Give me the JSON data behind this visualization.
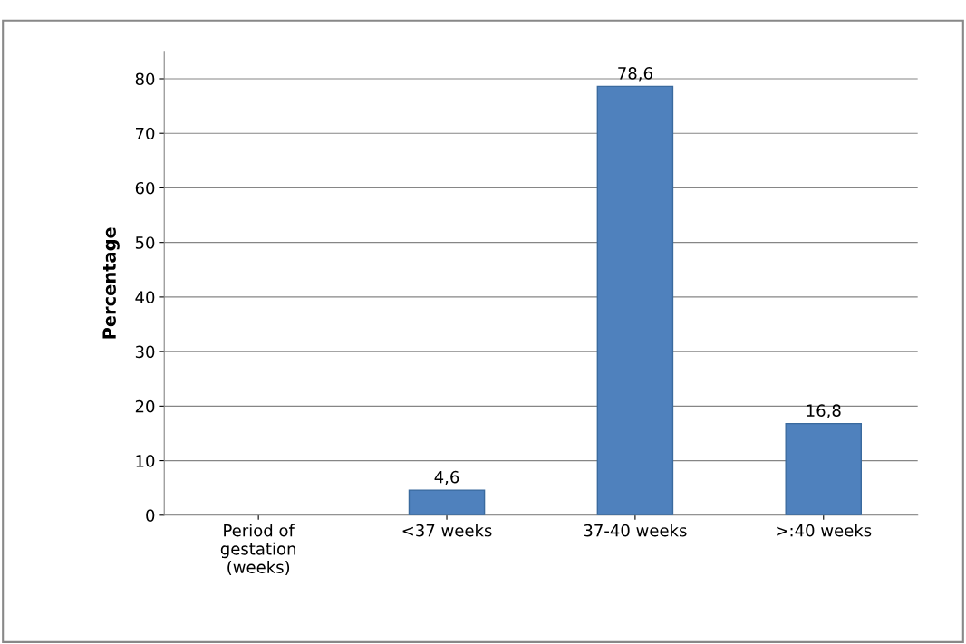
{
  "chart_data": {
    "type": "bar",
    "ylabel": "Percentage",
    "categories": [
      "Period of\ngestation\n(weeks)",
      "<37 weeks",
      "37-40 weeks",
      ">:40 weeks"
    ],
    "values": [
      null,
      4.6,
      78.6,
      16.8
    ],
    "value_labels": [
      null,
      "4,6",
      "78,6",
      "16,8"
    ],
    "color": "#4f81bd",
    "ylim": [
      0,
      85
    ],
    "yticks": [
      0,
      10,
      20,
      30,
      40,
      50,
      60,
      70,
      80
    ],
    "grid": "y",
    "legend": false
  }
}
